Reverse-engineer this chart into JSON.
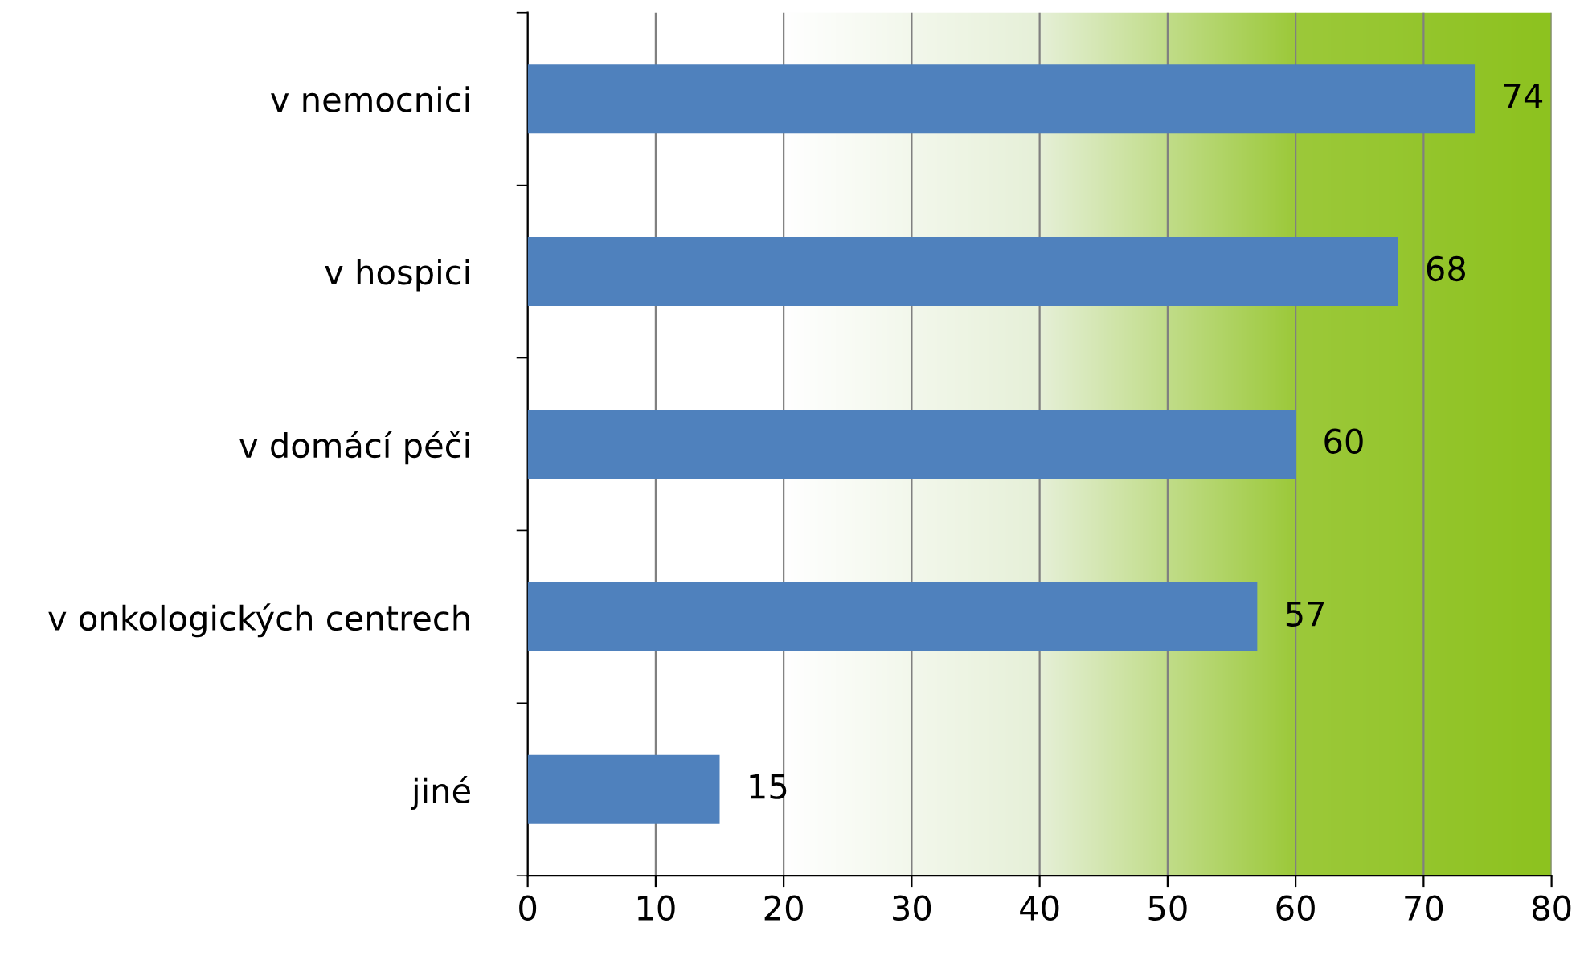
{
  "chart_data": {
    "type": "bar",
    "orientation": "horizontal",
    "categories": [
      "v nemocnici",
      "v hospici",
      "v domácí péči",
      "v onkologických centrech",
      "jiné"
    ],
    "values": [
      74,
      68,
      60,
      57,
      15
    ],
    "color": "#4f81bd",
    "data_labels": true,
    "xlim": [
      0,
      80
    ],
    "xticks": [
      0,
      10,
      20,
      30,
      40,
      50,
      60,
      70,
      80
    ],
    "grid": "x",
    "legend": false
  }
}
